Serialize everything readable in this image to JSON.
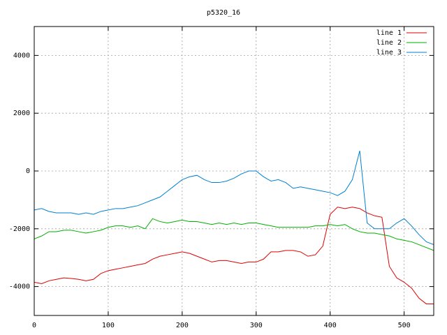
{
  "chart_data": {
    "type": "line",
    "title": "p5320_16",
    "x": [
      0,
      10,
      20,
      30,
      40,
      50,
      60,
      70,
      80,
      90,
      100,
      110,
      120,
      130,
      140,
      150,
      160,
      170,
      180,
      190,
      200,
      210,
      220,
      230,
      240,
      250,
      260,
      270,
      280,
      290,
      300,
      310,
      320,
      330,
      340,
      350,
      360,
      370,
      380,
      390,
      400,
      410,
      420,
      430,
      440,
      450,
      460,
      470,
      480,
      490,
      500,
      510,
      520,
      530,
      540
    ],
    "series": [
      {
        "name": "line 1",
        "color": "#e00000",
        "values": [
          -3850,
          -3900,
          -3800,
          -3750,
          -3700,
          -3720,
          -3750,
          -3800,
          -3750,
          -3550,
          -3450,
          -3400,
          -3350,
          -3300,
          -3250,
          -3200,
          -3050,
          -2950,
          -2900,
          -2850,
          -2800,
          -2850,
          -2950,
          -3050,
          -3150,
          -3100,
          -3100,
          -3150,
          -3200,
          -3150,
          -3150,
          -3050,
          -2800,
          -2800,
          -2750,
          -2750,
          -2800,
          -2950,
          -2900,
          -2600,
          -1500,
          -1250,
          -1300,
          -1250,
          -1300,
          -1450,
          -1550,
          -1600,
          -3300,
          -3700,
          -3850,
          -4050,
          -4400,
          -4600,
          -4600
        ]
      },
      {
        "name": "line 2",
        "color": "#00b000",
        "values": [
          -2350,
          -2250,
          -2100,
          -2100,
          -2050,
          -2050,
          -2100,
          -2150,
          -2100,
          -2050,
          -1950,
          -1900,
          -1900,
          -1950,
          -1900,
          -2000,
          -1650,
          -1750,
          -1800,
          -1750,
          -1700,
          -1750,
          -1750,
          -1800,
          -1850,
          -1800,
          -1850,
          -1800,
          -1850,
          -1800,
          -1800,
          -1850,
          -1900,
          -1950,
          -1950,
          -1950,
          -1950,
          -1950,
          -1900,
          -1900,
          -1850,
          -1900,
          -1850,
          -2000,
          -2100,
          -2150,
          -2150,
          -2200,
          -2250,
          -2350,
          -2400,
          -2450,
          -2550,
          -2650,
          -2750
        ]
      },
      {
        "name": "line 3",
        "color": "#0080d0",
        "values": [
          -1350,
          -1300,
          -1400,
          -1450,
          -1450,
          -1450,
          -1500,
          -1450,
          -1500,
          -1400,
          -1350,
          -1300,
          -1300,
          -1250,
          -1200,
          -1100,
          -1000,
          -900,
          -700,
          -500,
          -300,
          -200,
          -150,
          -300,
          -400,
          -400,
          -350,
          -250,
          -100,
          0,
          0,
          -200,
          -350,
          -300,
          -400,
          -600,
          -550,
          -600,
          -650,
          -700,
          -750,
          -850,
          -700,
          -300,
          700,
          -1800,
          -2000,
          -2000,
          -2000,
          -1800,
          -1650,
          -1900,
          -2200,
          -2450,
          -2550
        ]
      }
    ],
    "xlim": [
      0,
      540
    ],
    "ylim": [
      -5000,
      5000
    ],
    "xticks": [
      0,
      100,
      200,
      300,
      400,
      500
    ],
    "yticks": [
      -4000,
      -2000,
      0,
      2000,
      4000
    ],
    "grid": true,
    "legend": "top-right"
  }
}
